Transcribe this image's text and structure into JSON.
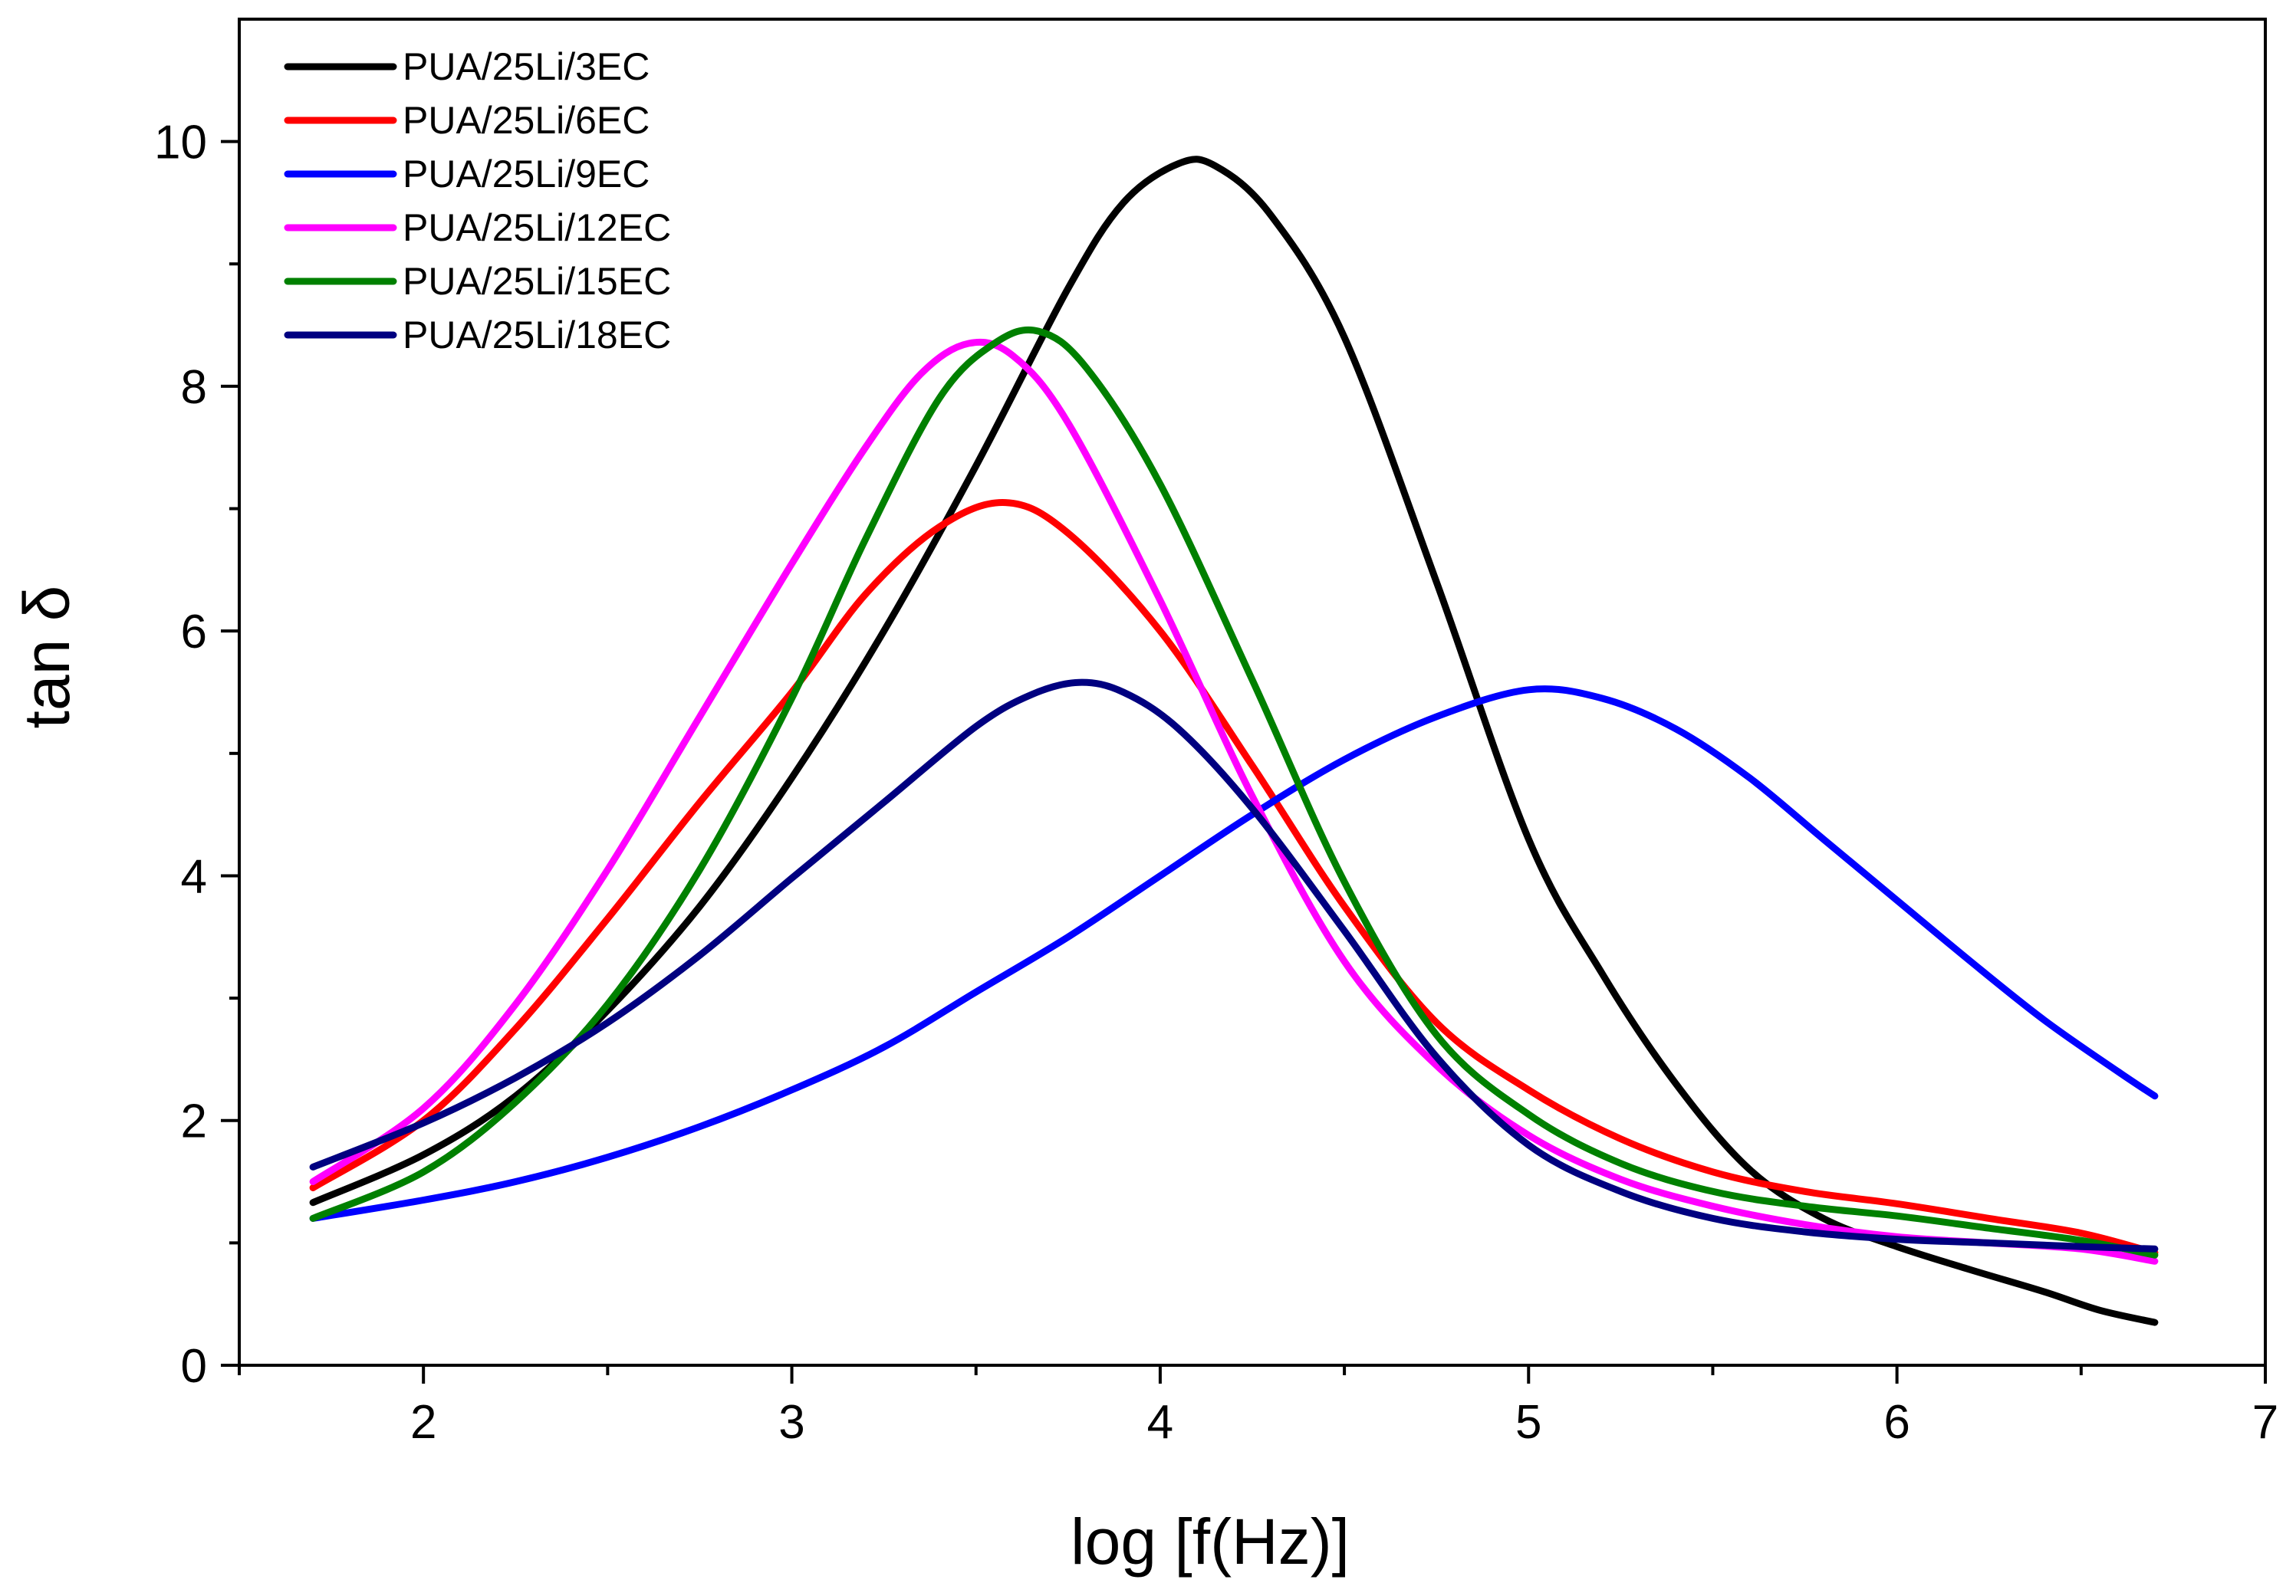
{
  "chart_data": {
    "type": "line",
    "title": "",
    "xlabel": "log [f(Hz)]",
    "ylabel": "tan δ",
    "xlim": [
      1.5,
      7
    ],
    "ylim": [
      0,
      11
    ],
    "x_ticks": [
      2,
      3,
      4,
      5,
      6,
      7
    ],
    "y_ticks": [
      0,
      2,
      4,
      6,
      8,
      10
    ],
    "x_tick_labels": [
      "2",
      "3",
      "4",
      "5",
      "6",
      "7"
    ],
    "y_tick_labels": [
      "0",
      "2",
      "4",
      "6",
      "8",
      "10"
    ],
    "grid": false,
    "legend_position": "top-left",
    "series": [
      {
        "name": "PUA/25Li/3EC",
        "color": "#000000",
        "points": [
          [
            1.7,
            1.33
          ],
          [
            2.0,
            1.72
          ],
          [
            2.25,
            2.2
          ],
          [
            2.5,
            2.9
          ],
          [
            2.75,
            3.75
          ],
          [
            3.0,
            4.8
          ],
          [
            3.25,
            6.0
          ],
          [
            3.5,
            7.35
          ],
          [
            3.75,
            8.8
          ],
          [
            3.9,
            9.5
          ],
          [
            4.05,
            9.82
          ],
          [
            4.15,
            9.8
          ],
          [
            4.3,
            9.4
          ],
          [
            4.5,
            8.4
          ],
          [
            4.75,
            6.4
          ],
          [
            5.0,
            4.3
          ],
          [
            5.2,
            3.2
          ],
          [
            5.4,
            2.3
          ],
          [
            5.6,
            1.6
          ],
          [
            5.8,
            1.2
          ],
          [
            6.0,
            0.97
          ],
          [
            6.2,
            0.78
          ],
          [
            6.4,
            0.6
          ],
          [
            6.55,
            0.45
          ],
          [
            6.7,
            0.35
          ]
        ]
      },
      {
        "name": "PUA/25Li/6EC",
        "color": "#ff0000",
        "points": [
          [
            1.7,
            1.45
          ],
          [
            2.0,
            2.0
          ],
          [
            2.25,
            2.75
          ],
          [
            2.5,
            3.65
          ],
          [
            2.75,
            4.6
          ],
          [
            3.0,
            5.5
          ],
          [
            3.2,
            6.3
          ],
          [
            3.4,
            6.85
          ],
          [
            3.58,
            7.05
          ],
          [
            3.75,
            6.8
          ],
          [
            4.0,
            6.0
          ],
          [
            4.25,
            4.9
          ],
          [
            4.5,
            3.75
          ],
          [
            4.75,
            2.8
          ],
          [
            5.0,
            2.25
          ],
          [
            5.25,
            1.85
          ],
          [
            5.5,
            1.58
          ],
          [
            5.75,
            1.42
          ],
          [
            6.0,
            1.32
          ],
          [
            6.25,
            1.2
          ],
          [
            6.5,
            1.08
          ],
          [
            6.7,
            0.92
          ]
        ]
      },
      {
        "name": "PUA/25Li/9EC",
        "color": "#0000ff",
        "points": [
          [
            1.7,
            1.2
          ],
          [
            2.0,
            1.35
          ],
          [
            2.25,
            1.5
          ],
          [
            2.5,
            1.7
          ],
          [
            2.75,
            1.95
          ],
          [
            3.0,
            2.25
          ],
          [
            3.25,
            2.6
          ],
          [
            3.5,
            3.05
          ],
          [
            3.75,
            3.5
          ],
          [
            4.0,
            4.0
          ],
          [
            4.25,
            4.5
          ],
          [
            4.5,
            4.95
          ],
          [
            4.75,
            5.3
          ],
          [
            5.0,
            5.52
          ],
          [
            5.2,
            5.45
          ],
          [
            5.4,
            5.2
          ],
          [
            5.6,
            4.8
          ],
          [
            5.8,
            4.3
          ],
          [
            6.0,
            3.8
          ],
          [
            6.2,
            3.3
          ],
          [
            6.4,
            2.82
          ],
          [
            6.6,
            2.4
          ],
          [
            6.7,
            2.2
          ]
        ]
      },
      {
        "name": "PUA/25Li/12EC",
        "color": "#ff00ff",
        "points": [
          [
            1.7,
            1.5
          ],
          [
            2.0,
            2.1
          ],
          [
            2.25,
            2.95
          ],
          [
            2.5,
            4.05
          ],
          [
            2.75,
            5.3
          ],
          [
            3.0,
            6.55
          ],
          [
            3.2,
            7.5
          ],
          [
            3.35,
            8.1
          ],
          [
            3.48,
            8.35
          ],
          [
            3.6,
            8.25
          ],
          [
            3.75,
            7.7
          ],
          [
            4.0,
            6.25
          ],
          [
            4.25,
            4.65
          ],
          [
            4.5,
            3.3
          ],
          [
            4.75,
            2.45
          ],
          [
            5.0,
            1.88
          ],
          [
            5.25,
            1.52
          ],
          [
            5.5,
            1.3
          ],
          [
            5.75,
            1.15
          ],
          [
            6.0,
            1.05
          ],
          [
            6.25,
            1.0
          ],
          [
            6.5,
            0.95
          ],
          [
            6.7,
            0.85
          ]
        ]
      },
      {
        "name": "PUA/25Li/15EC",
        "color": "#008000",
        "points": [
          [
            1.7,
            1.2
          ],
          [
            2.0,
            1.58
          ],
          [
            2.25,
            2.15
          ],
          [
            2.5,
            2.95
          ],
          [
            2.75,
            4.05
          ],
          [
            3.0,
            5.45
          ],
          [
            3.2,
            6.75
          ],
          [
            3.4,
            7.9
          ],
          [
            3.55,
            8.35
          ],
          [
            3.67,
            8.45
          ],
          [
            3.8,
            8.15
          ],
          [
            4.0,
            7.2
          ],
          [
            4.25,
            5.6
          ],
          [
            4.5,
            3.95
          ],
          [
            4.75,
            2.7
          ],
          [
            5.0,
            2.05
          ],
          [
            5.25,
            1.65
          ],
          [
            5.5,
            1.42
          ],
          [
            5.75,
            1.3
          ],
          [
            6.0,
            1.22
          ],
          [
            6.25,
            1.12
          ],
          [
            6.5,
            1.02
          ],
          [
            6.7,
            0.9
          ]
        ]
      },
      {
        "name": "PUA/25Li/18EC",
        "color": "#000080",
        "points": [
          [
            1.7,
            1.62
          ],
          [
            2.0,
            1.98
          ],
          [
            2.25,
            2.35
          ],
          [
            2.5,
            2.8
          ],
          [
            2.75,
            3.35
          ],
          [
            3.0,
            3.98
          ],
          [
            3.25,
            4.6
          ],
          [
            3.5,
            5.22
          ],
          [
            3.65,
            5.48
          ],
          [
            3.78,
            5.58
          ],
          [
            3.9,
            5.5
          ],
          [
            4.05,
            5.2
          ],
          [
            4.25,
            4.55
          ],
          [
            4.5,
            3.55
          ],
          [
            4.75,
            2.52
          ],
          [
            5.0,
            1.8
          ],
          [
            5.25,
            1.42
          ],
          [
            5.5,
            1.2
          ],
          [
            5.75,
            1.09
          ],
          [
            6.0,
            1.03
          ],
          [
            6.25,
            1.0
          ],
          [
            6.5,
            0.97
          ],
          [
            6.7,
            0.95
          ]
        ]
      }
    ]
  }
}
